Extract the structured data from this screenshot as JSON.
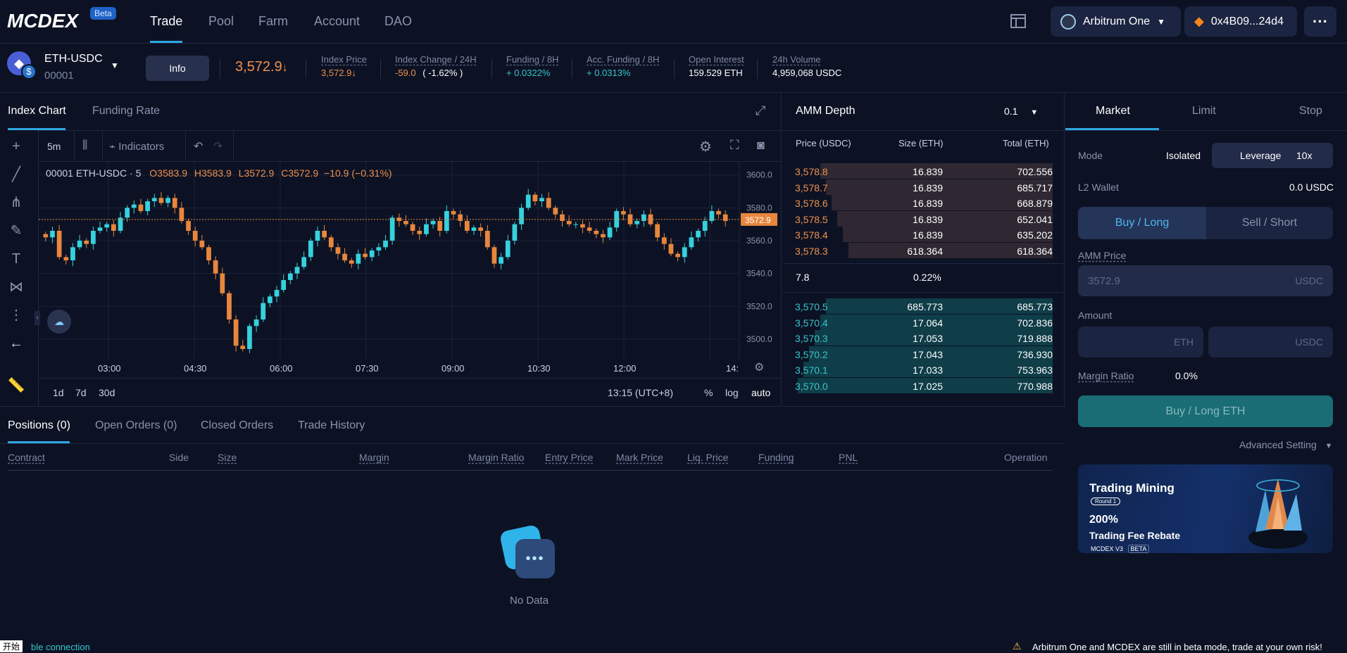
{
  "nav": {
    "logo": "MCDEX",
    "beta": "Beta",
    "links": [
      "Trade",
      "Pool",
      "Farm",
      "Account",
      "DAO"
    ],
    "network": "Arbitrum One",
    "wallet": "0x4B09...24d4",
    "more": "···"
  },
  "market": {
    "pair": "ETH-USDC",
    "id": "00001",
    "info_btn": "Info",
    "price": "3,572.9",
    "price_arrow": "↓",
    "stats": [
      {
        "label": "Index Price",
        "value": "3,572.9↓"
      },
      {
        "label": "Index Change / 24H",
        "value_a": "-59.0",
        "value_b": "( -1.62% )"
      },
      {
        "label": "Funding / 8H",
        "value": "+ 0.0322%"
      },
      {
        "label": "Acc. Funding / 8H",
        "value": "+ 0.0313%"
      },
      {
        "label": "Open Interest",
        "value": "159.529 ETH"
      },
      {
        "label": "24h Volume",
        "value": "4,959,068 USDC"
      }
    ]
  },
  "chart": {
    "tabs": [
      "Index Chart",
      "Funding Rate"
    ],
    "interval": "5m",
    "indicators": "Indicators",
    "legend_symbol": "00001 ETH-USDC · 5",
    "legend_o": "O3583.9",
    "legend_h": "H3583.9",
    "legend_l": "L3572.9",
    "legend_c": "C3572.9",
    "legend_chg": "−10.9 (−0.31%)",
    "price_tag": "3572.9",
    "y_ticks": [
      "3600.0",
      "3580.0",
      "3560.0",
      "3540.0",
      "3520.0",
      "3500.0"
    ],
    "x_ticks": [
      "03:00",
      "04:30",
      "06:00",
      "07:30",
      "09:00",
      "10:30",
      "12:00",
      "14:"
    ],
    "ranges": [
      "1d",
      "7d",
      "30d"
    ],
    "time": "13:15 (UTC+8)",
    "scale_opts": [
      "%",
      "log",
      "auto"
    ]
  },
  "chart_data": {
    "type": "candlestick",
    "ylim": [
      3488,
      3608
    ],
    "closes": [
      3562,
      3566,
      3550,
      3548,
      3556,
      3560,
      3558,
      3566,
      3568,
      3570,
      3566,
      3574,
      3580,
      3582,
      3578,
      3584,
      3586,
      3583,
      3586,
      3580,
      3572,
      3566,
      3560,
      3556,
      3548,
      3540,
      3528,
      3512,
      3496,
      3494,
      3508,
      3512,
      3522,
      3526,
      3530,
      3536,
      3540,
      3544,
      3550,
      3560,
      3566,
      3562,
      3556,
      3552,
      3548,
      3546,
      3552,
      3550,
      3554,
      3556,
      3560,
      3574,
      3572,
      3570,
      3566,
      3564,
      3570,
      3572,
      3566,
      3578,
      3576,
      3572,
      3566,
      3568,
      3566,
      3556,
      3546,
      3550,
      3560,
      3570,
      3580,
      3588,
      3584,
      3586,
      3580,
      3576,
      3572,
      3570,
      3570,
      3568,
      3566,
      3564,
      3562,
      3568,
      3578,
      3576,
      3570,
      3572,
      3576,
      3570,
      3562,
      3558,
      3552,
      3550,
      3556,
      3562,
      3566,
      3572,
      3578,
      3576,
      3572
    ],
    "depth_asks": [
      {
        "price": "3,578.8",
        "size": "16.839",
        "total": "702.556"
      },
      {
        "price": "3,578.7",
        "size": "16.839",
        "total": "685.717"
      },
      {
        "price": "3,578.6",
        "size": "16.839",
        "total": "668.879"
      },
      {
        "price": "3,578.5",
        "size": "16.839",
        "total": "652.041"
      },
      {
        "price": "3,578.4",
        "size": "16.839",
        "total": "635.202"
      },
      {
        "price": "3,578.3",
        "size": "618.364",
        "total": "618.364"
      }
    ],
    "depth_bids": [
      {
        "price": "3,570.5",
        "size": "685.773",
        "total": "685.773"
      },
      {
        "price": "3,570.4",
        "size": "17.064",
        "total": "702.836"
      },
      {
        "price": "3,570.3",
        "size": "17.053",
        "total": "719.888"
      },
      {
        "price": "3,570.2",
        "size": "17.043",
        "total": "736.930"
      },
      {
        "price": "3,570.1",
        "size": "17.033",
        "total": "753.963"
      },
      {
        "price": "3,570.0",
        "size": "17.025",
        "total": "770.988"
      }
    ]
  },
  "depth": {
    "title": "AMM Depth",
    "step": "0.1",
    "col_price": "Price (USDC)",
    "col_size": "Size (ETH)",
    "col_total": "Total (ETH)",
    "spread": "7.8",
    "spread_pct": "0.22%"
  },
  "trade": {
    "tabs": [
      "Market",
      "Limit",
      "Stop"
    ],
    "mode_label": "Mode",
    "mode_value": "Isolated",
    "leverage_label": "Leverage",
    "leverage_value": "10x",
    "wallet_label": "L2 Wallet",
    "wallet_value": "0.0 USDC",
    "buy": "Buy / Long",
    "sell": "Sell / Short",
    "amm_price_label": "AMM Price",
    "amm_price_value": "3572.9",
    "amm_price_unit": "USDC",
    "amount_label": "Amount",
    "amount_unit_a": "ETH",
    "amount_unit_b": "USDC",
    "margin_ratio_label": "Margin Ratio",
    "margin_ratio_value": "0.0%",
    "submit": "Buy / Long ETH",
    "advanced": "Advanced Setting",
    "banner_title": "Trading Mining",
    "banner_round": "Round 1",
    "banner_pct": "200%",
    "banner_sub": "Trading Fee Rebate",
    "banner_logo": "MCDEX V3",
    "banner_beta": "BETA"
  },
  "positions": {
    "tabs": [
      "Positions (0)",
      "Open Orders (0)",
      "Closed Orders",
      "Trade History"
    ],
    "headers": [
      "Contract",
      "Side",
      "Size",
      "Margin",
      "Margin Ratio",
      "Entry Price",
      "Mark Price",
      "Liq. Price",
      "Funding",
      "PNL",
      "Operation"
    ],
    "empty": "No Data"
  },
  "status": {
    "ime": "开始",
    "connection": "ble connection",
    "warning": "Arbitrum One and MCDEX are still in beta mode, trade at your own risk!"
  }
}
